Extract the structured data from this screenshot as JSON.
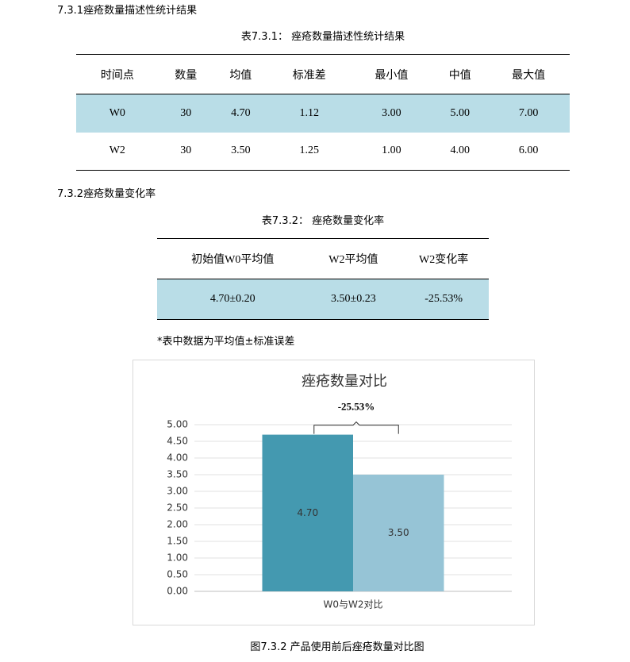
{
  "section1": "7.3.1痤疮数量描述性统计结果",
  "table1": {
    "caption": "表7.3.1：  痤疮数量描述性统计结果",
    "header": [
      "时间点",
      "数量",
      "均值",
      "标准差",
      "最小值",
      "中值",
      "最大值"
    ],
    "rows": [
      [
        "W0",
        "30",
        "4.70",
        "1.12",
        "3.00",
        "5.00",
        "7.00"
      ],
      [
        "W2",
        "30",
        "3.50",
        "1.25",
        "1.00",
        "4.00",
        "6.00"
      ]
    ]
  },
  "section2": "7.3.2痤疮数量变化率",
  "table2": {
    "caption": "表7.3.2：  痤疮数量变化率",
    "header": [
      "初始值W0平均值",
      "W2平均值",
      "W2变化率"
    ],
    "rows": [
      [
        "4.70±0.20",
        "3.50±0.23",
        "-25.53%"
      ]
    ]
  },
  "note": "*表中数据为平均值±标准误差",
  "chart_data": {
    "type": "bar",
    "title": "痤疮数量对比",
    "categories": [
      "W0与W2对比"
    ],
    "series": [
      {
        "color": "#4499b0",
        "values": [
          4.7
        ],
        "value_labels": [
          "4.70"
        ]
      },
      {
        "color": "#96c4d6",
        "values": [
          3.5
        ],
        "value_labels": [
          "3.50"
        ]
      }
    ],
    "annotation": "-25.53%",
    "ylim": [
      0,
      5
    ],
    "yticks": [
      {
        "value": 0,
        "label": "0.00"
      },
      {
        "value": 0.5,
        "label": "0.50"
      },
      {
        "value": 1,
        "label": "1.00"
      },
      {
        "value": 1.5,
        "label": "1.50"
      },
      {
        "value": 2,
        "label": "2.00"
      },
      {
        "value": 2.5,
        "label": "2.50"
      },
      {
        "value": 3,
        "label": "3.00"
      },
      {
        "value": 3.5,
        "label": "3.50"
      },
      {
        "value": 4,
        "label": "4.00"
      },
      {
        "value": 4.5,
        "label": "4.50"
      },
      {
        "value": 5,
        "label": "5.00"
      }
    ],
    "grid": true
  },
  "figure_caption": "图7.3.2 产品使用前后痤疮数量对比图"
}
